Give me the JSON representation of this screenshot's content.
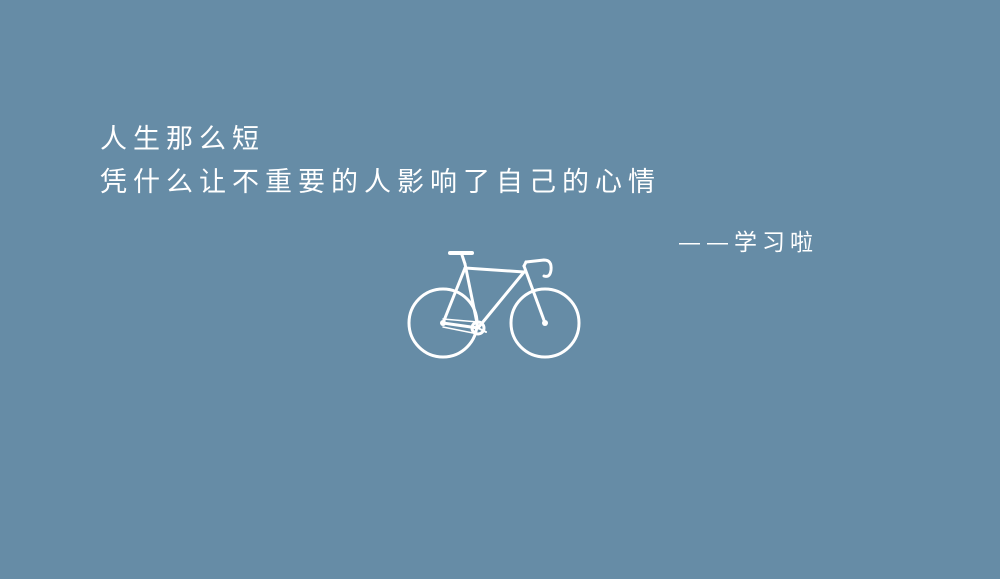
{
  "background_color": "#668ca6",
  "text_color": "#ffffff",
  "quote": {
    "line1": "人生那么短",
    "line2": "凭什么让不重要的人影响了自己的心情"
  },
  "signature": "——学习啦",
  "illustration": {
    "icon": "bicycle-icon"
  }
}
